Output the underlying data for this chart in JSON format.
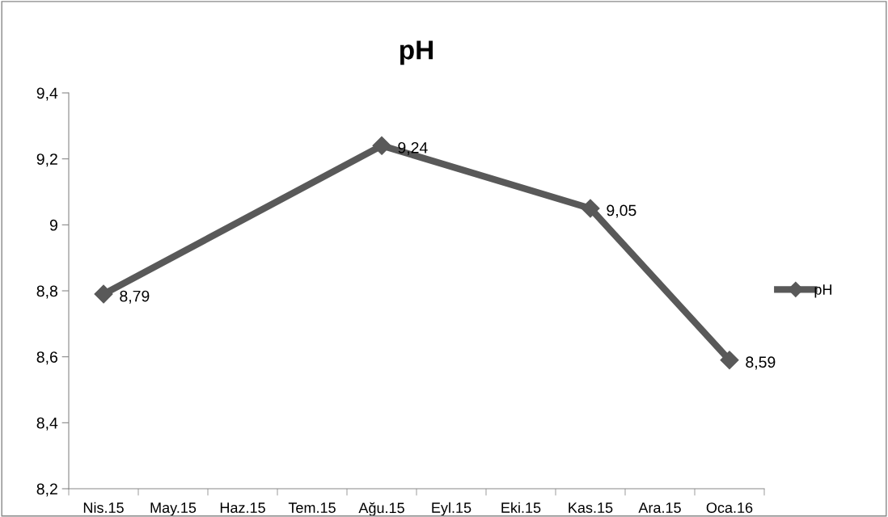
{
  "chart_data": {
    "type": "line",
    "title": "pH",
    "categories": [
      "Nis.15",
      "May.15",
      "Haz.15",
      "Tem.15",
      "Ağu.15",
      "Eyl.15",
      "Eki.15",
      "Kas.15",
      "Ara.15",
      "Oca.16"
    ],
    "series": [
      {
        "name": "pH",
        "color": "#595959",
        "values": [
          8.79,
          null,
          null,
          null,
          9.24,
          null,
          null,
          9.05,
          null,
          8.59
        ],
        "value_labels": [
          "8,79",
          null,
          null,
          null,
          "9,24",
          null,
          null,
          "9,05",
          null,
          "8,59"
        ]
      }
    ],
    "ylim": [
      8.2,
      9.4
    ],
    "yticks": [
      {
        "value": 8.2,
        "label": "8,2"
      },
      {
        "value": 8.4,
        "label": "8,4"
      },
      {
        "value": 8.6,
        "label": "8,6"
      },
      {
        "value": 8.8,
        "label": "8,8"
      },
      9,
      {
        "value": 9.2,
        "label": "9,2"
      },
      {
        "value": 9.4,
        "label": "9,4"
      }
    ],
    "grid": false,
    "legend": "right",
    "marker": "diamond",
    "line_style": "solid"
  }
}
